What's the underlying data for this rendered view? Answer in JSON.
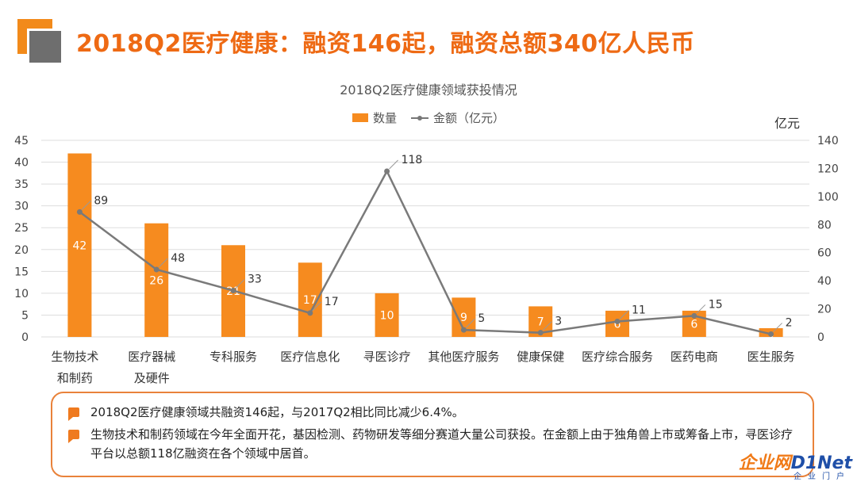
{
  "slide": {
    "title": "2018Q2医疗健康：融资146起，融资总额340亿人民币"
  },
  "chart_data": {
    "type": "bar",
    "title": "2018Q2医疗健康领域获投情况",
    "categories": [
      [
        "生物技术",
        "和制药"
      ],
      [
        "医疗器械",
        "及硬件"
      ],
      [
        "专科服务"
      ],
      [
        "医疗信息化"
      ],
      [
        "寻医诊疗"
      ],
      [
        "其他医疗服务"
      ],
      [
        "健康保健"
      ],
      [
        "医疗综合服务"
      ],
      [
        "医药电商"
      ],
      [
        "医生服务"
      ]
    ],
    "series": [
      {
        "name": "数量",
        "type": "bar",
        "axis": "left",
        "values": [
          42,
          26,
          21,
          17,
          10,
          9,
          7,
          6,
          6,
          2
        ],
        "color": "#f68b1f"
      },
      {
        "name": "金额（亿元）",
        "type": "line",
        "axis": "right",
        "values": [
          89,
          48,
          33,
          17,
          118,
          5,
          3,
          11,
          15,
          2
        ],
        "color": "#7a7a7a"
      }
    ],
    "y_left": {
      "min": 0,
      "max": 45,
      "step": 5,
      "ticks": [
        "0",
        "5",
        "10",
        "15",
        "20",
        "25",
        "30",
        "35",
        "40",
        "45"
      ]
    },
    "y_right": {
      "min": 0,
      "max": 140,
      "step": 20,
      "unit": "亿元",
      "ticks": [
        "0",
        "20",
        "40",
        "60",
        "80",
        "100",
        "120",
        "140"
      ]
    },
    "legend": {
      "position": "top"
    },
    "grid": true
  },
  "notes": [
    "2018Q2医疗健康领域共融资146起，与2017Q2相比同比减少6.4%。",
    "生物技术和制药领域在今年全面开花，基因检测、药物研发等细分赛道大量公司获投。在金额上由于独角兽上市或筹备上市，寻医诊疗平台以总额118亿融资在各个领域中居首。"
  ],
  "brand": {
    "name": "企业网",
    "suffix": "D1Net",
    "sub": "企业门户"
  }
}
